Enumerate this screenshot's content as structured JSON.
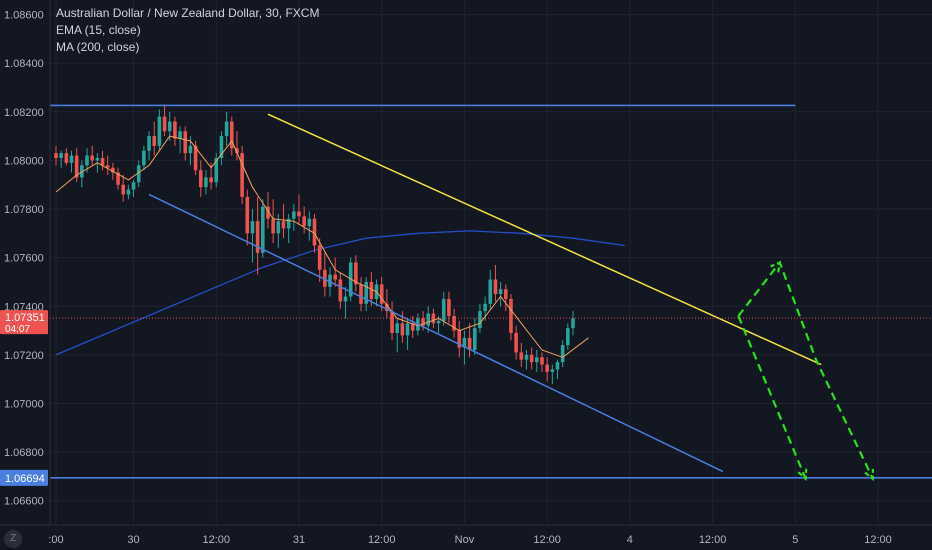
{
  "legend": {
    "title": "Australian Dollar / New Zealand Dollar, 30, FXCM",
    "ema": "EMA (15, close)",
    "ma": "MA (200, close)"
  },
  "logo_text": "Z",
  "colors": {
    "background": "#131722",
    "grid": "#1f2430",
    "axis_text": "#b2b5be",
    "up_candle": "#26a69a",
    "down_candle": "#ef5350",
    "ema": "#f0a35e",
    "ma": "#2962ff",
    "channel_line": "#4a7fe0",
    "resistance_line": "#f5e342",
    "horizontal_levels": "#4a7fe0",
    "projection": "#27e01f",
    "current_price_line": "#ef5350"
  },
  "chart_data": {
    "type": "candlestick",
    "symbol": "AUDNZD",
    "timeframe": "30",
    "y_axis": {
      "ylim": [
        1.065,
        1.0866
      ],
      "ticks": [
        "1.08600",
        "1.08400",
        "1.08200",
        "1.08000",
        "1.07800",
        "1.07600",
        "1.07400",
        "1.07200",
        "1.07000",
        "1.06800",
        "1.06600"
      ],
      "tick_values": [
        1.086,
        1.084,
        1.082,
        1.08,
        1.078,
        1.076,
        1.074,
        1.072,
        1.07,
        1.068,
        1.066
      ]
    },
    "x_axis": {
      "labels": [
        ":00",
        "30",
        "12:00",
        "31",
        "12:00",
        "Nov",
        "12:00",
        "4",
        "12:00",
        "5",
        "12:00"
      ],
      "label_bars": [
        0,
        15,
        31,
        47,
        63,
        79,
        95,
        111,
        127,
        143,
        159
      ]
    },
    "current_price": {
      "label": "1.07351",
      "countdown": "04:07",
      "value": 1.07351
    },
    "level_label": {
      "label": "1.06694",
      "value": 1.06694
    },
    "candles": [
      [
        1.0803,
        1.0806,
        1.0798,
        1.0801
      ],
      [
        1.0801,
        1.0804,
        1.0797,
        1.0803
      ],
      [
        1.0803,
        1.0805,
        1.0798,
        1.0799
      ],
      [
        1.0799,
        1.0804,
        1.0795,
        1.0802
      ],
      [
        1.0802,
        1.0805,
        1.0791,
        1.0793
      ],
      [
        1.0793,
        1.08,
        1.0789,
        1.0798
      ],
      [
        1.0798,
        1.0805,
        1.0795,
        1.0802
      ],
      [
        1.0802,
        1.0806,
        1.0798,
        1.08
      ],
      [
        1.08,
        1.0803,
        1.0795,
        1.0801
      ],
      [
        1.0801,
        1.0804,
        1.0796,
        1.0798
      ],
      [
        1.0798,
        1.0802,
        1.0794,
        1.0797
      ],
      [
        1.0797,
        1.0799,
        1.0792,
        1.0795
      ],
      [
        1.0795,
        1.0797,
        1.0788,
        1.079
      ],
      [
        1.079,
        1.0794,
        1.0783,
        1.0786
      ],
      [
        1.0786,
        1.079,
        1.0784,
        1.0788
      ],
      [
        1.0788,
        1.0792,
        1.0785,
        1.0791
      ],
      [
        1.0791,
        1.08,
        1.0789,
        1.0798
      ],
      [
        1.0798,
        1.0806,
        1.0796,
        1.0804
      ],
      [
        1.0804,
        1.0812,
        1.08,
        1.081
      ],
      [
        1.081,
        1.0816,
        1.0802,
        1.0806
      ],
      [
        1.0806,
        1.0821,
        1.0804,
        1.0818
      ],
      [
        1.0818,
        1.0823,
        1.081,
        1.0812
      ],
      [
        1.0812,
        1.082,
        1.0808,
        1.0816
      ],
      [
        1.0816,
        1.0818,
        1.0806,
        1.0809
      ],
      [
        1.0809,
        1.0814,
        1.0803,
        1.0812
      ],
      [
        1.0812,
        1.0814,
        1.08,
        1.0803
      ],
      [
        1.0803,
        1.081,
        1.0798,
        1.0806
      ],
      [
        1.0806,
        1.0808,
        1.0794,
        1.0796
      ],
      [
        1.0796,
        1.08,
        1.0785,
        1.0789
      ],
      [
        1.0789,
        1.0796,
        1.0786,
        1.0793
      ],
      [
        1.0793,
        1.0799,
        1.0788,
        1.0791
      ],
      [
        1.0791,
        1.0803,
        1.0789,
        1.0801
      ],
      [
        1.0801,
        1.0812,
        1.0798,
        1.081
      ],
      [
        1.081,
        1.082,
        1.0806,
        1.0816
      ],
      [
        1.0816,
        1.0818,
        1.0802,
        1.0805
      ],
      [
        1.0805,
        1.0812,
        1.08,
        1.0803
      ],
      [
        1.0803,
        1.0806,
        1.0782,
        1.0785
      ],
      [
        1.0785,
        1.0788,
        1.0765,
        1.077
      ],
      [
        1.077,
        1.078,
        1.0758,
        1.0775
      ],
      [
        1.0775,
        1.0785,
        1.0753,
        1.0762
      ],
      [
        1.0762,
        1.0784,
        1.076,
        1.0781
      ],
      [
        1.0781,
        1.0787,
        1.0772,
        1.0776
      ],
      [
        1.0776,
        1.0784,
        1.0766,
        1.077
      ],
      [
        1.077,
        1.0778,
        1.0764,
        1.0775
      ],
      [
        1.0775,
        1.0782,
        1.0768,
        1.0772
      ],
      [
        1.0772,
        1.0778,
        1.0766,
        1.0776
      ],
      [
        1.0776,
        1.0782,
        1.0771,
        1.0779
      ],
      [
        1.0779,
        1.0786,
        1.0774,
        1.0777
      ],
      [
        1.0777,
        1.0781,
        1.077,
        1.0773
      ],
      [
        1.0773,
        1.0779,
        1.0767,
        1.0776
      ],
      [
        1.0776,
        1.0778,
        1.0762,
        1.0765
      ],
      [
        1.0765,
        1.0768,
        1.075,
        1.0755
      ],
      [
        1.0755,
        1.0762,
        1.0744,
        1.0748
      ],
      [
        1.0748,
        1.0756,
        1.0744,
        1.0753
      ],
      [
        1.0753,
        1.076,
        1.0748,
        1.0751
      ],
      [
        1.0751,
        1.0754,
        1.0739,
        1.0742
      ],
      [
        1.0742,
        1.0748,
        1.0735,
        1.0744
      ],
      [
        1.0744,
        1.076,
        1.0742,
        1.0758
      ],
      [
        1.0758,
        1.0761,
        1.0746,
        1.0749
      ],
      [
        1.0749,
        1.0752,
        1.0738,
        1.0741
      ],
      [
        1.0741,
        1.0752,
        1.0738,
        1.075
      ],
      [
        1.075,
        1.0754,
        1.074,
        1.0743
      ],
      [
        1.0743,
        1.0751,
        1.074,
        1.0749
      ],
      [
        1.0749,
        1.0752,
        1.0738,
        1.0741
      ],
      [
        1.0741,
        1.0747,
        1.0735,
        1.0738
      ],
      [
        1.0738,
        1.0742,
        1.0726,
        1.0729
      ],
      [
        1.0729,
        1.0735,
        1.0721,
        1.0733
      ],
      [
        1.0733,
        1.0738,
        1.0725,
        1.0728
      ],
      [
        1.0728,
        1.0735,
        1.0722,
        1.0733
      ],
      [
        1.0733,
        1.0736,
        1.0727,
        1.073
      ],
      [
        1.073,
        1.0737,
        1.0728,
        1.0735
      ],
      [
        1.0735,
        1.0738,
        1.073,
        1.0732
      ],
      [
        1.0732,
        1.074,
        1.0729,
        1.0737
      ],
      [
        1.0737,
        1.0739,
        1.0731,
        1.0733
      ],
      [
        1.0733,
        1.0736,
        1.0729,
        1.0734
      ],
      [
        1.0734,
        1.0746,
        1.0732,
        1.0743
      ],
      [
        1.0743,
        1.0746,
        1.0733,
        1.0736
      ],
      [
        1.0736,
        1.0739,
        1.0727,
        1.073
      ],
      [
        1.073,
        1.0734,
        1.0719,
        1.0723
      ],
      [
        1.0723,
        1.073,
        1.0716,
        1.0727
      ],
      [
        1.0727,
        1.0733,
        1.0719,
        1.0722
      ],
      [
        1.0722,
        1.0735,
        1.072,
        1.0731
      ],
      [
        1.0731,
        1.0741,
        1.0729,
        1.0738
      ],
      [
        1.0738,
        1.0744,
        1.0734,
        1.0741
      ],
      [
        1.0741,
        1.0755,
        1.0739,
        1.0751
      ],
      [
        1.0751,
        1.0757,
        1.0742,
        1.0745
      ],
      [
        1.0745,
        1.075,
        1.074,
        1.0747
      ],
      [
        1.0747,
        1.0749,
        1.0738,
        1.0743
      ],
      [
        1.0743,
        1.0745,
        1.0726,
        1.0729
      ],
      [
        1.0729,
        1.0732,
        1.0718,
        1.0721
      ],
      [
        1.0721,
        1.0725,
        1.0715,
        1.0718
      ],
      [
        1.0718,
        1.0722,
        1.0714,
        1.072
      ],
      [
        1.072,
        1.0723,
        1.0714,
        1.0717
      ],
      [
        1.0717,
        1.0722,
        1.0713,
        1.0719
      ],
      [
        1.0719,
        1.0721,
        1.0713,
        1.0716
      ],
      [
        1.0716,
        1.0719,
        1.0709,
        1.0713
      ],
      [
        1.0713,
        1.0716,
        1.0708,
        1.0714
      ],
      [
        1.0714,
        1.0718,
        1.071,
        1.0717
      ],
      [
        1.0717,
        1.0726,
        1.0715,
        1.0724
      ],
      [
        1.0724,
        1.0733,
        1.0722,
        1.0731
      ],
      [
        1.0731,
        1.0738,
        1.0728,
        1.0735
      ]
    ],
    "ema": [
      [
        0,
        1.0787
      ],
      [
        4,
        1.0794
      ],
      [
        8,
        1.0799
      ],
      [
        14,
        1.0792
      ],
      [
        18,
        1.0798
      ],
      [
        22,
        1.081
      ],
      [
        26,
        1.0808
      ],
      [
        30,
        1.0797
      ],
      [
        34,
        1.0808
      ],
      [
        38,
        1.0789
      ],
      [
        42,
        1.0776
      ],
      [
        46,
        1.0775
      ],
      [
        50,
        1.077
      ],
      [
        54,
        1.0755
      ],
      [
        58,
        1.075
      ],
      [
        62,
        1.0746
      ],
      [
        66,
        1.0735
      ],
      [
        70,
        1.0732
      ],
      [
        74,
        1.0735
      ],
      [
        78,
        1.073
      ],
      [
        82,
        1.0733
      ],
      [
        86,
        1.0744
      ],
      [
        90,
        1.0733
      ],
      [
        94,
        1.0722
      ],
      [
        98,
        1.0719
      ],
      [
        103,
        1.0727
      ]
    ],
    "ma200": [
      [
        0,
        1.072
      ],
      [
        10,
        1.0729
      ],
      [
        20,
        1.0738
      ],
      [
        30,
        1.0747
      ],
      [
        40,
        1.0756
      ],
      [
        50,
        1.0763
      ],
      [
        60,
        1.0768
      ],
      [
        70,
        1.077
      ],
      [
        80,
        1.0771
      ],
      [
        90,
        1.077
      ],
      [
        100,
        1.0768
      ],
      [
        110,
        1.0765
      ]
    ],
    "annotations": {
      "channel_top": {
        "y": 1.08226,
        "x_bars": [
          0,
          143
        ]
      },
      "support_level": {
        "y": 1.06694
      },
      "resistance_trend": {
        "from": [
          41,
          1.0819
        ],
        "to": [
          148,
          1.0716
        ]
      },
      "lower_channel": {
        "from": [
          18,
          1.0786
        ],
        "to": [
          129,
          1.0672
        ]
      },
      "projection_up_down": [
        [
          132,
          1.0736
        ],
        [
          140,
          1.0758
        ],
        [
          147,
          1.0718
        ],
        [
          158,
          1.0669
        ]
      ],
      "projection_down": [
        [
          132,
          1.0736
        ],
        [
          145,
          1.0669
        ]
      ]
    }
  }
}
